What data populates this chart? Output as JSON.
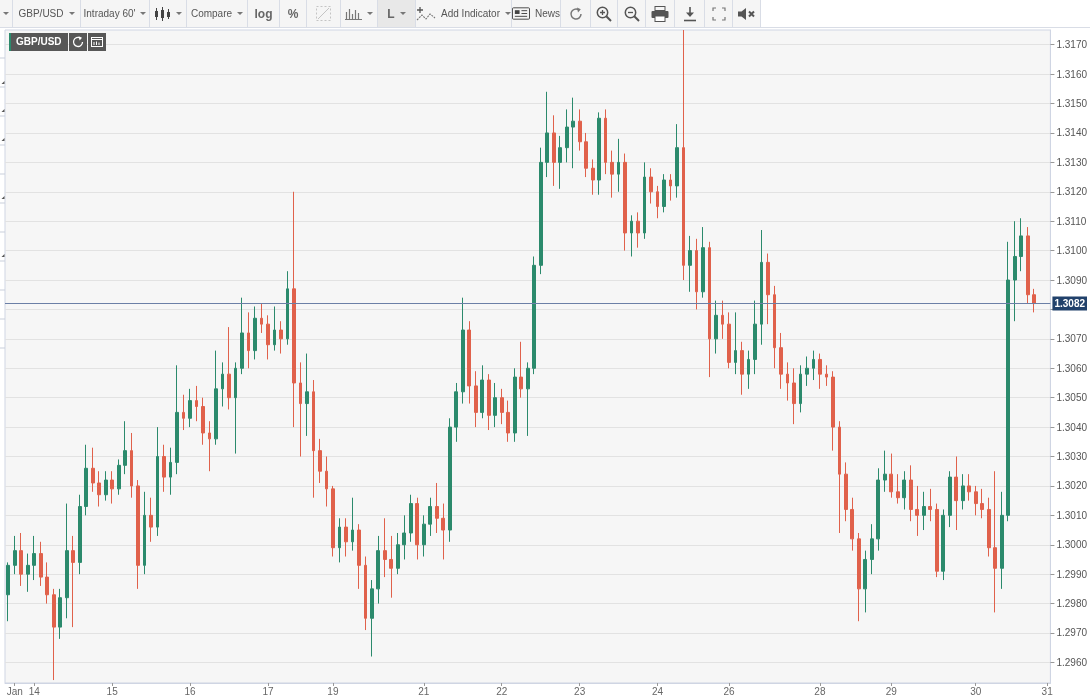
{
  "chart_data": {
    "type": "candlestick",
    "title": "GBP/USD",
    "categories": [
      null,
      "Jan",
      null,
      null,
      "14",
      null,
      null,
      null,
      null,
      null,
      null,
      null,
      null,
      null,
      null,
      null,
      "15",
      null,
      null,
      null,
      null,
      null,
      null,
      null,
      null,
      null,
      null,
      null,
      "16",
      null,
      null,
      null,
      null,
      null,
      null,
      null,
      null,
      null,
      null,
      null,
      "17",
      null,
      null,
      null,
      null,
      null,
      null,
      null,
      null,
      null,
      "19",
      null,
      null,
      null,
      null,
      null,
      null,
      null,
      null,
      null,
      null,
      null,
      null,
      null,
      "21",
      null,
      null,
      null,
      null,
      null,
      null,
      null,
      null,
      null,
      null,
      null,
      "22",
      null,
      null,
      null,
      null,
      null,
      null,
      null,
      null,
      null,
      null,
      null,
      "23",
      null,
      null,
      null,
      null,
      null,
      null,
      null,
      null,
      null,
      null,
      null,
      "24",
      null,
      null,
      null,
      null,
      null,
      null,
      null,
      null,
      null,
      null,
      "26",
      null,
      null,
      null,
      null,
      null,
      null,
      null,
      null,
      null,
      null,
      null,
      null,
      null,
      "28",
      null,
      null,
      null,
      null,
      null,
      null,
      null,
      null,
      null,
      null,
      "29",
      null,
      null,
      null,
      null,
      null,
      null,
      null,
      null,
      null,
      null,
      null,
      null,
      "30",
      null,
      null,
      null,
      null,
      null,
      null,
      null,
      null,
      null,
      null,
      "31"
    ],
    "ohlc": [
      [
        1.2983,
        1.2994,
        1.2974,
        1.2993
      ],
      [
        1.2993,
        1.3003,
        1.299,
        1.2998
      ],
      [
        1.2998,
        1.3004,
        1.2986,
        1.299
      ],
      [
        1.299,
        1.2997,
        1.2984,
        1.2993
      ],
      [
        1.2993,
        1.3003,
        1.2988,
        1.2997
      ],
      [
        1.2997,
        1.3001,
        1.2986,
        1.2989
      ],
      [
        1.2989,
        1.2994,
        1.298,
        1.2983
      ],
      [
        1.2983,
        1.2985,
        1.2954,
        1.2972
      ],
      [
        1.2972,
        1.2985,
        1.2968,
        1.2982
      ],
      [
        1.2982,
        1.3014,
        1.2975,
        1.2998
      ],
      [
        1.2998,
        1.3003,
        1.2972,
        1.2994
      ],
      [
        1.2994,
        1.3017,
        1.299,
        1.3013
      ],
      [
        1.3013,
        1.3034,
        1.301,
        1.3026
      ],
      [
        1.3026,
        1.3033,
        1.3018,
        1.3021
      ],
      [
        1.3021,
        1.3025,
        1.3013,
        1.3017
      ],
      [
        1.3017,
        1.3025,
        1.3015,
        1.3022
      ],
      [
        1.3022,
        1.3025,
        1.3014,
        1.3019
      ],
      [
        1.3019,
        1.3029,
        1.3017,
        1.3027
      ],
      [
        1.3027,
        1.3042,
        1.3024,
        1.3032
      ],
      [
        1.3032,
        1.3038,
        1.3016,
        1.302
      ],
      [
        1.302,
        1.3022,
        1.2985,
        1.2993
      ],
      [
        1.2993,
        1.3018,
        1.299,
        1.301
      ],
      [
        1.301,
        1.3016,
        1.3001,
        1.3006
      ],
      [
        1.3006,
        1.304,
        1.3003,
        1.303
      ],
      [
        1.303,
        1.3034,
        1.3018,
        1.3023
      ],
      [
        1.3023,
        1.3033,
        1.3017,
        1.3028
      ],
      [
        1.3028,
        1.3061,
        1.3024,
        1.3045
      ],
      [
        1.3045,
        1.3051,
        1.3039,
        1.3043
      ],
      [
        1.3043,
        1.3053,
        1.304,
        1.3049
      ],
      [
        1.3049,
        1.3054,
        1.3042,
        1.3047
      ],
      [
        1.3047,
        1.305,
        1.3034,
        1.3038
      ],
      [
        1.3038,
        1.3042,
        1.3025,
        1.3036
      ],
      [
        1.3036,
        1.3066,
        1.3034,
        1.3053
      ],
      [
        1.3053,
        1.3062,
        1.3047,
        1.3058
      ],
      [
        1.3058,
        1.3074,
        1.3046,
        1.305
      ],
      [
        1.305,
        1.3062,
        1.3031,
        1.306
      ],
      [
        1.306,
        1.3084,
        1.3058,
        1.3072
      ],
      [
        1.3072,
        1.3079,
        1.306,
        1.3066
      ],
      [
        1.3066,
        1.3081,
        1.3063,
        1.3077
      ],
      [
        1.3077,
        1.3082,
        1.3072,
        1.3075
      ],
      [
        1.3075,
        1.3078,
        1.3063,
        1.3068
      ],
      [
        1.3068,
        1.3081,
        1.3066,
        1.3073
      ],
      [
        1.3073,
        1.3076,
        1.3065,
        1.307
      ],
      [
        1.307,
        1.3093,
        1.3068,
        1.3087
      ],
      [
        1.3087,
        1.312,
        1.304,
        1.3055
      ],
      [
        1.3055,
        1.3062,
        1.303,
        1.3048
      ],
      [
        1.3048,
        1.3065,
        1.3037,
        1.3052
      ],
      [
        1.3052,
        1.3056,
        1.3016,
        1.3032
      ],
      [
        1.3032,
        1.3036,
        1.3021,
        1.3025
      ],
      [
        1.3025,
        1.303,
        1.3013,
        1.3019
      ],
      [
        1.3019,
        1.302,
        1.2996,
        1.2999
      ],
      [
        1.2999,
        1.3009,
        1.2994,
        1.3006
      ],
      [
        1.3006,
        1.3009,
        1.2996,
        1.3001
      ],
      [
        1.3001,
        1.3016,
        1.2998,
        1.3005
      ],
      [
        1.3005,
        1.3007,
        1.2985,
        1.2993
      ],
      [
        1.2993,
        1.2996,
        1.2971,
        1.2975
      ],
      [
        1.2975,
        1.2988,
        1.2962,
        1.2985
      ],
      [
        1.2985,
        1.3003,
        1.298,
        1.2998
      ],
      [
        1.2998,
        1.3009,
        1.2989,
        1.2995
      ],
      [
        1.2995,
        1.3003,
        1.2982,
        1.2992
      ],
      [
        1.2992,
        1.3004,
        1.299,
        1.3
      ],
      [
        1.3,
        1.301,
        1.2995,
        1.3004
      ],
      [
        1.3004,
        1.3017,
        1.3001,
        1.3014
      ],
      [
        1.3014,
        1.3016,
        1.2995,
        1.3
      ],
      [
        1.3,
        1.301,
        1.2996,
        1.3007
      ],
      [
        1.3007,
        1.3016,
        1.3003,
        1.3013
      ],
      [
        1.3013,
        1.3021,
        1.3004,
        1.3009
      ],
      [
        1.3009,
        1.3014,
        1.2995,
        1.3005
      ],
      [
        1.3005,
        1.3043,
        1.3001,
        1.304
      ],
      [
        1.304,
        1.3055,
        1.3035,
        1.3052
      ],
      [
        1.3052,
        1.3084,
        1.3048,
        1.3073
      ],
      [
        1.3073,
        1.3076,
        1.3048,
        1.3054
      ],
      [
        1.3054,
        1.3059,
        1.304,
        1.3045
      ],
      [
        1.3045,
        1.3061,
        1.3043,
        1.3056
      ],
      [
        1.3056,
        1.3058,
        1.3039,
        1.3044
      ],
      [
        1.3044,
        1.3055,
        1.304,
        1.305
      ],
      [
        1.305,
        1.3053,
        1.3041,
        1.3045
      ],
      [
        1.3045,
        1.3049,
        1.3035,
        1.3038
      ],
      [
        1.3038,
        1.306,
        1.3035,
        1.3057
      ],
      [
        1.3057,
        1.3069,
        1.305,
        1.3053
      ],
      [
        1.3053,
        1.3062,
        1.3037,
        1.306
      ],
      [
        1.306,
        1.3098,
        1.3058,
        1.3095
      ],
      [
        1.3095,
        1.3135,
        1.3092,
        1.313
      ],
      [
        1.313,
        1.3154,
        1.3125,
        1.314
      ],
      [
        1.314,
        1.3146,
        1.3122,
        1.313
      ],
      [
        1.313,
        1.3139,
        1.3121,
        1.3135
      ],
      [
        1.3135,
        1.3148,
        1.313,
        1.3142
      ],
      [
        1.3142,
        1.3152,
        1.3128,
        1.3144
      ],
      [
        1.3144,
        1.3148,
        1.3134,
        1.3137
      ],
      [
        1.3137,
        1.314,
        1.3125,
        1.3128
      ],
      [
        1.3128,
        1.3131,
        1.3119,
        1.3124
      ],
      [
        1.3124,
        1.3147,
        1.3119,
        1.3145
      ],
      [
        1.3145,
        1.3148,
        1.3126,
        1.313
      ],
      [
        1.313,
        1.3134,
        1.3118,
        1.3126
      ],
      [
        1.3126,
        1.3138,
        1.312,
        1.313
      ],
      [
        1.313,
        1.3133,
        1.31,
        1.3106
      ],
      [
        1.3106,
        1.3112,
        1.3098,
        1.311
      ],
      [
        1.311,
        1.3113,
        1.3101,
        1.3106
      ],
      [
        1.3106,
        1.313,
        1.3104,
        1.3125
      ],
      [
        1.3125,
        1.3128,
        1.3116,
        1.312
      ],
      [
        1.312,
        1.3122,
        1.3111,
        1.3115
      ],
      [
        1.3115,
        1.3126,
        1.3113,
        1.3124
      ],
      [
        1.3124,
        1.3126,
        1.3117,
        1.3122
      ],
      [
        1.3122,
        1.3143,
        1.3118,
        1.3135
      ],
      [
        1.3135,
        1.3175,
        1.309,
        1.3095
      ],
      [
        1.3095,
        1.3105,
        1.3086,
        1.31
      ],
      [
        1.31,
        1.3104,
        1.308,
        1.3086
      ],
      [
        1.3086,
        1.3108,
        1.3084,
        1.3101
      ],
      [
        1.3101,
        1.3103,
        1.3057,
        1.307
      ],
      [
        1.307,
        1.3083,
        1.3065,
        1.3078
      ],
      [
        1.3078,
        1.3083,
        1.307,
        1.3075
      ],
      [
        1.3075,
        1.3079,
        1.306,
        1.3062
      ],
      [
        1.3062,
        1.3079,
        1.3058,
        1.3066
      ],
      [
        1.3066,
        1.3069,
        1.3051,
        1.3058
      ],
      [
        1.3058,
        1.3066,
        1.3053,
        1.3063
      ],
      [
        1.3063,
        1.3083,
        1.3058,
        1.3075
      ],
      [
        1.3075,
        1.3107,
        1.3068,
        1.3096
      ],
      [
        1.3096,
        1.3099,
        1.3075,
        1.3085
      ],
      [
        1.3085,
        1.3088,
        1.306,
        1.3067
      ],
      [
        1.3067,
        1.3072,
        1.3053,
        1.3058
      ],
      [
        1.3058,
        1.3062,
        1.3049,
        1.3055
      ],
      [
        1.3055,
        1.306,
        1.3041,
        1.3048
      ],
      [
        1.3048,
        1.3061,
        1.3045,
        1.3058
      ],
      [
        1.3058,
        1.3064,
        1.3054,
        1.306
      ],
      [
        1.306,
        1.3066,
        1.3056,
        1.3063
      ],
      [
        1.3063,
        1.3065,
        1.3053,
        1.3058
      ],
      [
        1.3058,
        1.3061,
        1.3054,
        1.3057
      ],
      [
        1.3057,
        1.3059,
        1.3032,
        1.304
      ],
      [
        1.304,
        1.3042,
        1.3004,
        1.3024
      ],
      [
        1.3024,
        1.3028,
        1.3008,
        1.3012
      ],
      [
        1.3012,
        1.3016,
        1.2998,
        1.3002
      ],
      [
        1.3002,
        1.3004,
        1.2974,
        1.2985
      ],
      [
        1.2985,
        1.2998,
        1.2977,
        1.2995
      ],
      [
        1.2995,
        1.3007,
        1.299,
        1.3002
      ],
      [
        1.3002,
        1.3026,
        1.2998,
        1.3022
      ],
      [
        1.3022,
        1.3032,
        1.3018,
        1.3024
      ],
      [
        1.3024,
        1.3031,
        1.3016,
        1.3018
      ],
      [
        1.3018,
        1.3024,
        1.3014,
        1.3016
      ],
      [
        1.3016,
        1.3025,
        1.3012,
        1.3022
      ],
      [
        1.3022,
        1.3027,
        1.3008,
        1.3012
      ],
      [
        1.3012,
        1.302,
        1.3003,
        1.301
      ],
      [
        1.301,
        1.3018,
        1.3005,
        1.3013
      ],
      [
        1.3013,
        1.3019,
        1.3008,
        1.3012
      ],
      [
        1.3012,
        1.3014,
        1.2989,
        1.2991
      ],
      [
        1.2991,
        1.3012,
        1.2988,
        1.301
      ],
      [
        1.301,
        1.3025,
        1.3006,
        1.3023
      ],
      [
        1.3023,
        1.303,
        1.3005,
        1.3015
      ],
      [
        1.3015,
        1.3024,
        1.3012,
        1.302
      ],
      [
        1.302,
        1.3024,
        1.3015,
        1.3018
      ],
      [
        1.3018,
        1.302,
        1.301,
        1.3014
      ],
      [
        1.3014,
        1.3019,
        1.3009,
        1.3012
      ],
      [
        1.3012,
        1.3016,
        1.2996,
        1.2999
      ],
      [
        1.2999,
        1.3025,
        1.2977,
        1.2992
      ],
      [
        1.2992,
        1.3018,
        1.2985,
        1.301
      ],
      [
        1.301,
        1.3103,
        1.3008,
        1.309
      ],
      [
        1.309,
        1.311,
        1.3076,
        1.3098
      ],
      [
        1.3098,
        1.3111,
        1.3093,
        1.3105
      ],
      [
        1.3105,
        1.3108,
        1.3082,
        1.3085
      ],
      [
        1.3085,
        1.3087,
        1.3079,
        1.3082
      ],
      null,
      null
    ],
    "colors": [
      "#2b8a6c",
      "#2b8a6c",
      "#e0614b",
      "#2b8a6c",
      "#2b8a6c",
      "#e0614b",
      "#e0614b",
      "#e0614b",
      "#2b8a6c",
      "#2b8a6c",
      "#e0614b",
      "#2b8a6c",
      "#2b8a6c",
      "#e0614b",
      "#e0614b",
      "#2b8a6c",
      "#e0614b",
      "#2b8a6c",
      "#2b8a6c",
      "#e0614b",
      "#e0614b",
      "#2b8a6c",
      "#e0614b",
      "#2b8a6c",
      "#e0614b",
      "#2b8a6c",
      "#2b8a6c",
      "#e0614b",
      "#2b8a6c",
      "#e0614b",
      "#e0614b",
      "#e0614b",
      "#2b8a6c",
      "#2b8a6c",
      "#e0614b",
      "#2b8a6c",
      "#2b8a6c",
      "#e0614b",
      "#2b8a6c",
      "#e0614b",
      "#e0614b",
      "#2b8a6c",
      "#e0614b",
      "#2b8a6c",
      "#e0614b",
      "#e0614b",
      "#2b8a6c",
      "#e0614b",
      "#e0614b",
      "#e0614b",
      "#e0614b",
      "#2b8a6c",
      "#e0614b",
      "#2b8a6c",
      "#e0614b",
      "#e0614b",
      "#2b8a6c",
      "#2b8a6c",
      "#e0614b",
      "#e0614b",
      "#2b8a6c",
      "#2b8a6c",
      "#2b8a6c",
      "#e0614b",
      "#2b8a6c",
      "#2b8a6c",
      "#e0614b",
      "#e0614b",
      "#2b8a6c",
      "#2b8a6c",
      "#2b8a6c",
      "#e0614b",
      "#e0614b",
      "#2b8a6c",
      "#e0614b",
      "#2b8a6c",
      "#e0614b",
      "#e0614b",
      "#2b8a6c",
      "#e0614b",
      "#2b8a6c",
      "#2b8a6c",
      "#2b8a6c",
      "#2b8a6c",
      "#e0614b",
      "#2b8a6c",
      "#2b8a6c",
      "#2b8a6c",
      "#e0614b",
      "#e0614b",
      "#e0614b",
      "#2b8a6c",
      "#e0614b",
      "#e0614b",
      "#2b8a6c",
      "#e0614b",
      "#2b8a6c",
      "#e0614b",
      "#2b8a6c",
      "#e0614b",
      "#e0614b",
      "#2b8a6c",
      "#e0614b",
      "#2b8a6c",
      "#e0614b",
      "#2b8a6c",
      "#e0614b",
      "#2b8a6c",
      "#e0614b",
      "#2b8a6c",
      "#e0614b",
      "#e0614b",
      "#2b8a6c",
      "#e0614b",
      "#2b8a6c",
      "#2b8a6c",
      "#2b8a6c",
      "#e0614b",
      "#e0614b",
      "#e0614b",
      "#e0614b",
      "#e0614b",
      "#2b8a6c",
      "#2b8a6c",
      "#2b8a6c",
      "#e0614b",
      "#e0614b",
      "#e0614b",
      "#e0614b",
      "#e0614b",
      "#e0614b",
      "#e0614b",
      "#2b8a6c",
      "#2b8a6c",
      "#2b8a6c",
      "#2b8a6c",
      "#e0614b",
      "#e0614b",
      "#2b8a6c",
      "#e0614b",
      "#e0614b",
      "#2b8a6c",
      "#e0614b",
      "#e0614b",
      "#2b8a6c",
      "#2b8a6c",
      "#e0614b",
      "#2b8a6c",
      "#e0614b",
      "#e0614b",
      "#e0614b",
      "#e0614b",
      "#e0614b",
      "#2b8a6c",
      "#2b8a6c",
      "#2b8a6c",
      "#2b8a6c",
      "#e0614b",
      "#e0614b",
      null,
      null
    ],
    "ylim": [
      1.2953,
      1.3175
    ],
    "yticks": [
      {
        "value": 1.296,
        "label": "1.2960"
      },
      {
        "value": 1.297,
        "label": "1.2970"
      },
      {
        "value": 1.298,
        "label": "1.2980"
      },
      {
        "value": 1.299,
        "label": "1.2990"
      },
      {
        "value": 1.3,
        "label": "1.3000"
      },
      {
        "value": 1.301,
        "label": "1.3010"
      },
      {
        "value": 1.302,
        "label": "1.3020"
      },
      {
        "value": 1.303,
        "label": "1.3030"
      },
      {
        "value": 1.304,
        "label": "1.3040"
      },
      {
        "value": 1.305,
        "label": "1.3050"
      },
      {
        "value": 1.306,
        "label": "1.3060"
      },
      {
        "value": 1.307,
        "label": "1.3070"
      },
      {
        "value": 1.308,
        "label": null
      },
      {
        "value": 1.309,
        "label": "1.3090"
      },
      {
        "value": 1.31,
        "label": "1.3100"
      },
      {
        "value": 1.311,
        "label": "1.3110"
      },
      {
        "value": 1.312,
        "label": "1.3120"
      },
      {
        "value": 1.313,
        "label": "1.3130"
      },
      {
        "value": 1.314,
        "label": "1.3140"
      },
      {
        "value": 1.315,
        "label": "1.3150"
      },
      {
        "value": 1.316,
        "label": "1.3160"
      },
      {
        "value": 1.317,
        "label": "1.3170"
      }
    ],
    "grid": "y",
    "ref_lines": [
      {
        "axis": "y",
        "value": 1.3082,
        "label": "1.3082",
        "color": "#6b7fa6"
      }
    ],
    "annotations": [
      "GBP/USD",
      "Intraday 60'",
      "Compare",
      "log",
      "%",
      "L",
      "Add Indicator",
      "News"
    ]
  }
}
